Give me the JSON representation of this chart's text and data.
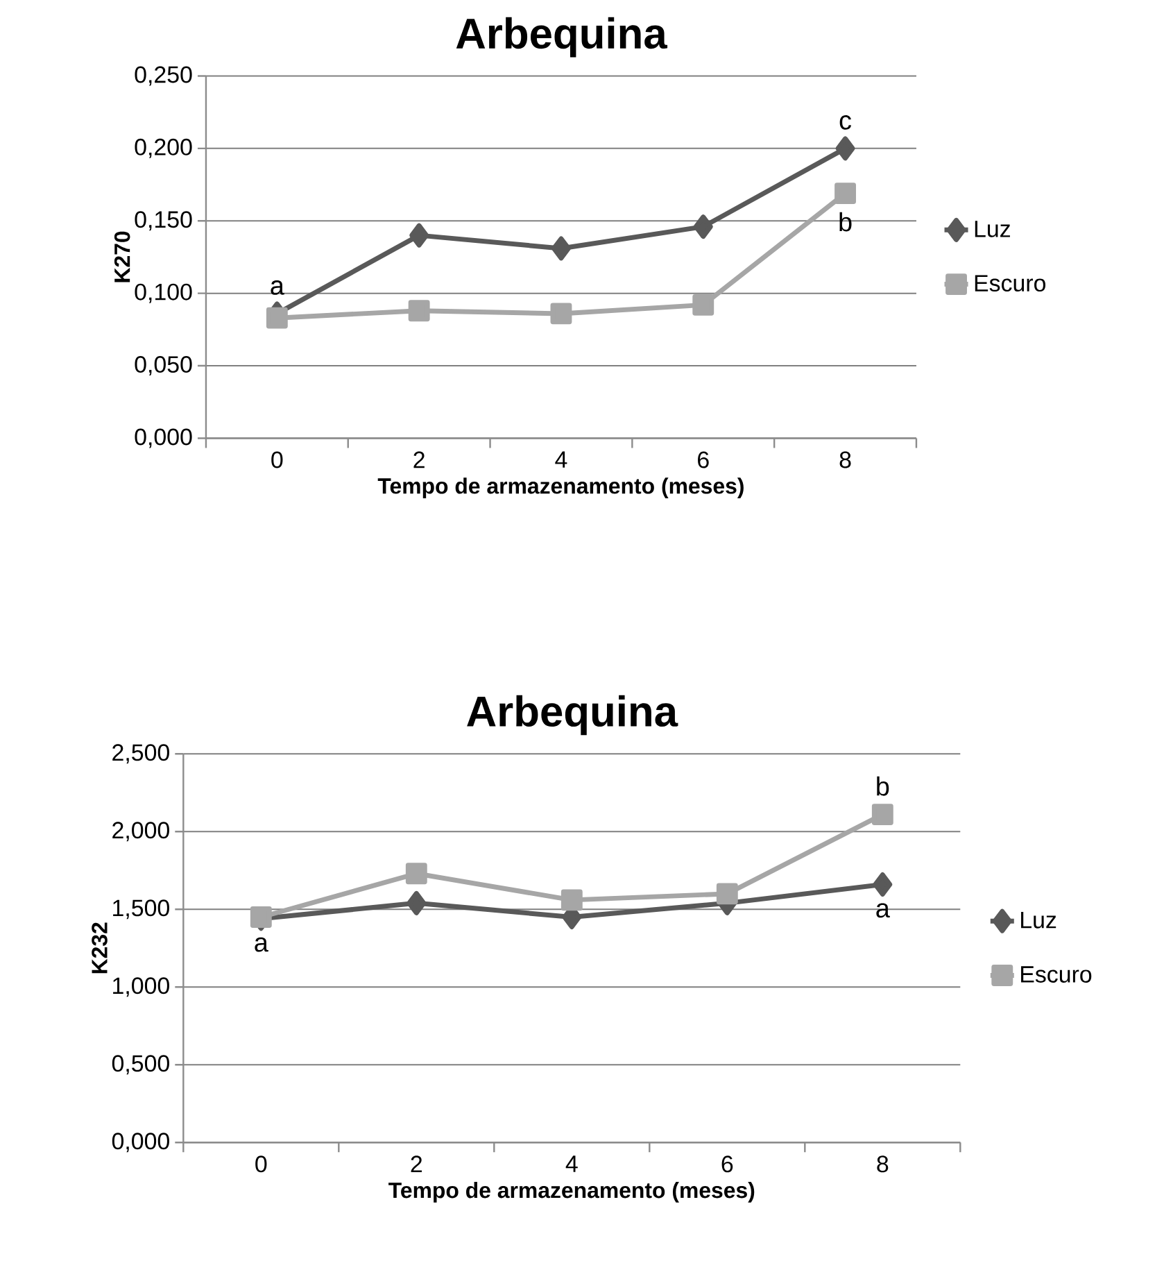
{
  "chart_data": [
    {
      "type": "line",
      "title": "Arbequina",
      "xlabel": "Tempo de armazenamento (meses)",
      "ylabel": "K270",
      "categories": [
        "0",
        "2",
        "4",
        "6",
        "8"
      ],
      "series": [
        {
          "name": "Luz",
          "color": "#595959",
          "marker": "diamond",
          "values": [
            0.086,
            0.14,
            0.131,
            0.146,
            0.2
          ]
        },
        {
          "name": "Escuro",
          "color": "#a6a6a6",
          "marker": "square",
          "values": [
            0.083,
            0.088,
            0.086,
            0.092,
            0.169
          ]
        }
      ],
      "ylim": [
        0,
        0.25
      ],
      "yticks": [
        {
          "value": 0,
          "label": "0,000"
        },
        {
          "value": 0.05,
          "label": "0,050"
        },
        {
          "value": 0.1,
          "label": "0,100"
        },
        {
          "value": 0.15,
          "label": "0,150"
        },
        {
          "value": 0.2,
          "label": "0,200"
        },
        {
          "value": 0.25,
          "label": "0,250"
        }
      ],
      "grid": "y",
      "legend": "right",
      "line_style": "solid",
      "annotations": [
        {
          "text": "a",
          "x": "0",
          "y": 0.086
        },
        {
          "text": "c",
          "x": "8",
          "y": 0.2
        },
        {
          "text": "b",
          "x": "8",
          "y": 0.169
        }
      ]
    },
    {
      "type": "line",
      "title": "Arbequina",
      "xlabel": "Tempo de armazenamento (meses)",
      "ylabel": "K232",
      "categories": [
        "0",
        "2",
        "4",
        "6",
        "8"
      ],
      "series": [
        {
          "name": "Luz",
          "color": "#595959",
          "marker": "diamond",
          "values": [
            1.44,
            1.54,
            1.45,
            1.54,
            1.66
          ]
        },
        {
          "name": "Escuro",
          "color": "#a6a6a6",
          "marker": "square",
          "values": [
            1.45,
            1.73,
            1.56,
            1.6,
            2.11
          ]
        }
      ],
      "ylim": [
        0,
        2.5
      ],
      "yticks": [
        {
          "value": 0,
          "label": "0,000"
        },
        {
          "value": 0.5,
          "label": "0,500"
        },
        {
          "value": 1,
          "label": "1,000"
        },
        {
          "value": 1.5,
          "label": "1,500"
        },
        {
          "value": 2,
          "label": "2,000"
        },
        {
          "value": 2.5,
          "label": "2,500"
        }
      ],
      "grid": "y",
      "legend": "right",
      "line_style": "solid",
      "annotations": [
        {
          "text": "a",
          "x": "0",
          "y": 1.44
        },
        {
          "text": "b",
          "x": "8",
          "y": 2.11
        },
        {
          "text": "a",
          "x": "8",
          "y": 1.66
        }
      ]
    }
  ]
}
